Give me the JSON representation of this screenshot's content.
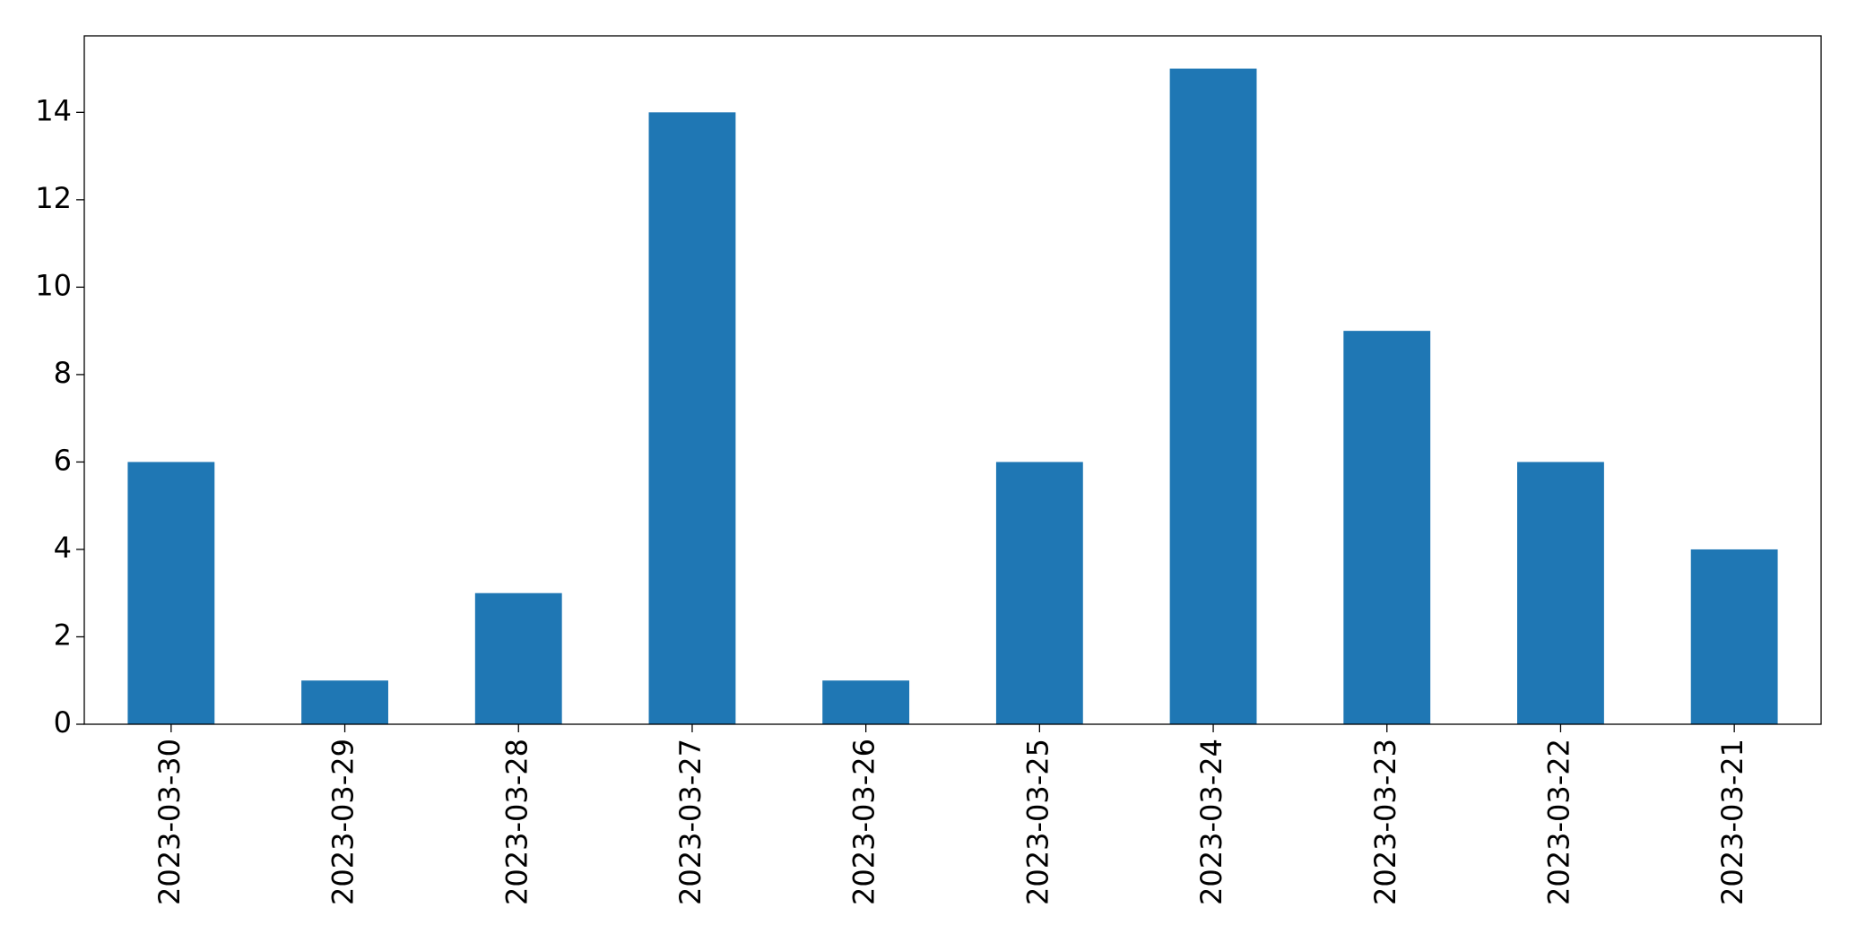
{
  "chart_data": {
    "type": "bar",
    "categories": [
      "2023-03-30",
      "2023-03-29",
      "2023-03-28",
      "2023-03-27",
      "2023-03-26",
      "2023-03-25",
      "2023-03-24",
      "2023-03-23",
      "2023-03-22",
      "2023-03-21"
    ],
    "values": [
      6,
      1,
      3,
      14,
      1,
      6,
      15,
      9,
      6,
      4
    ],
    "color": "#1f77b4",
    "ylim": [
      0,
      15.75
    ],
    "yticks": [
      0,
      2,
      4,
      6,
      8,
      10,
      12,
      14
    ],
    "grid": false
  }
}
